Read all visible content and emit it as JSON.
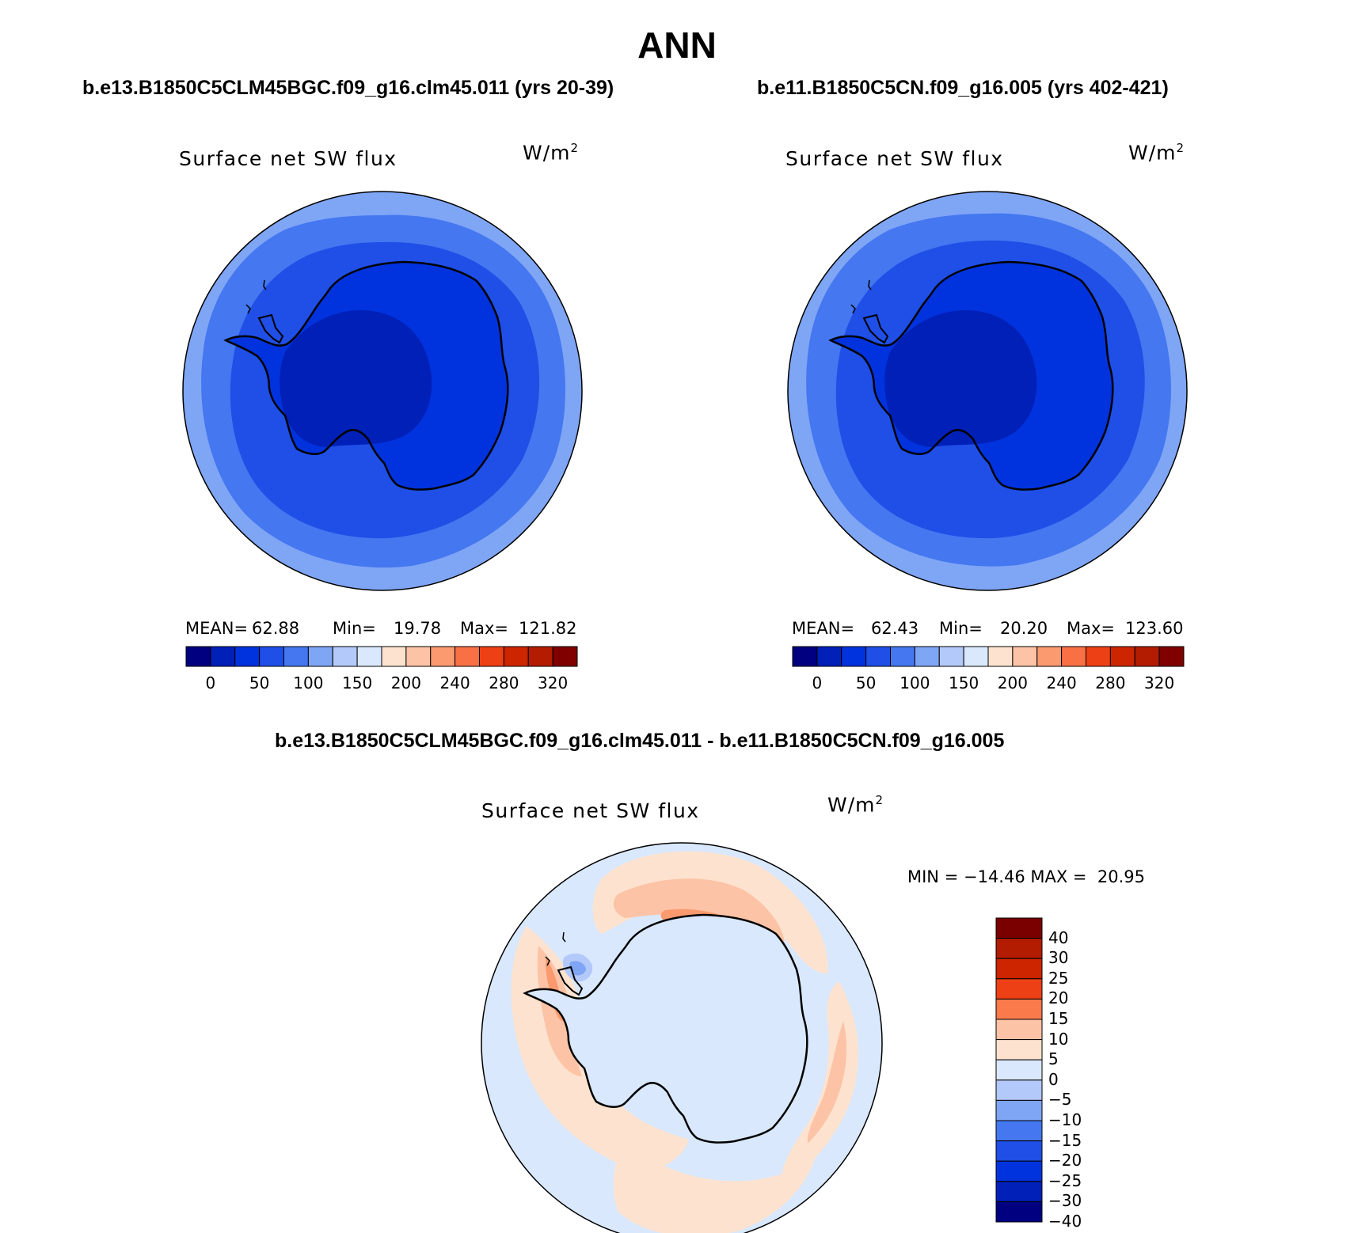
{
  "figure": {
    "title": "ANN",
    "variable": "Surface net SW flux",
    "units_base": "W/m",
    "units_exp": "2"
  },
  "panels": [
    {
      "case": "b.e13.B1850C5CLM45BGC.f09_g16.clm45.011 (yrs 20-39)",
      "stats": {
        "mean_label": "MEAN=",
        "mean": "62.88",
        "min_label": "Min=",
        "min": "19.78",
        "max_label": "Max=",
        "max": "121.82"
      }
    },
    {
      "case": "b.e11.B1850C5CN.f09_g16.005 (yrs 402-421)",
      "stats": {
        "mean_label": "MEAN=",
        "mean": "62.43",
        "min_label": "Min=",
        "min": "20.20",
        "max_label": "Max=",
        "max": "123.60"
      }
    }
  ],
  "difference": {
    "title": "b.e13.B1850C5CLM45BGC.f09_g16.clm45.011 - b.e11.B1850C5CN.f09_g16.005",
    "stats_text": "MIN = −14.46 MAX =  20.95"
  },
  "colorbar_abs": {
    "colors": [
      "#000080",
      "#0020b8",
      "#0033dd",
      "#1f4fe6",
      "#4477f0",
      "#7fa5f5",
      "#b3c9fa",
      "#d9e8fc",
      "#fde3cf",
      "#fcc3a6",
      "#fb9a6e",
      "#f97045",
      "#ee4015",
      "#cc2500",
      "#b31c00",
      "#800000"
    ],
    "labels": [
      "0",
      "50",
      "100",
      "150",
      "200",
      "240",
      "280",
      "320"
    ]
  },
  "colorbar_diff": {
    "colors": [
      "#7a0000",
      "#b31c00",
      "#cc2500",
      "#ee4015",
      "#fb7a4c",
      "#fcc3a6",
      "#fde3cf",
      "#d9e8fc",
      "#b3c9fa",
      "#7fa5f5",
      "#4477f0",
      "#1f4fe6",
      "#0033dd",
      "#0020b8",
      "#000080"
    ],
    "labels": [
      "40",
      "30",
      "25",
      "20",
      "15",
      "10",
      "5",
      "0",
      "−5",
      "−10",
      "−15",
      "−20",
      "−25",
      "−30",
      "−40"
    ]
  },
  "field_colors": {
    "outer_ring": "#7fa5f5",
    "mid_ring": "#4477f0",
    "inner_ring": "#1f4fe6",
    "continent": "#0033dd",
    "interior": "#0020b8",
    "diff_background": "#d9e8fc",
    "diff_warm": "#fde3cf",
    "diff_warmer": "#fcc3a6",
    "diff_hot": "#fb9a6e",
    "diff_cool": "#b3c9fa",
    "diff_cooler": "#7fa5f5"
  }
}
